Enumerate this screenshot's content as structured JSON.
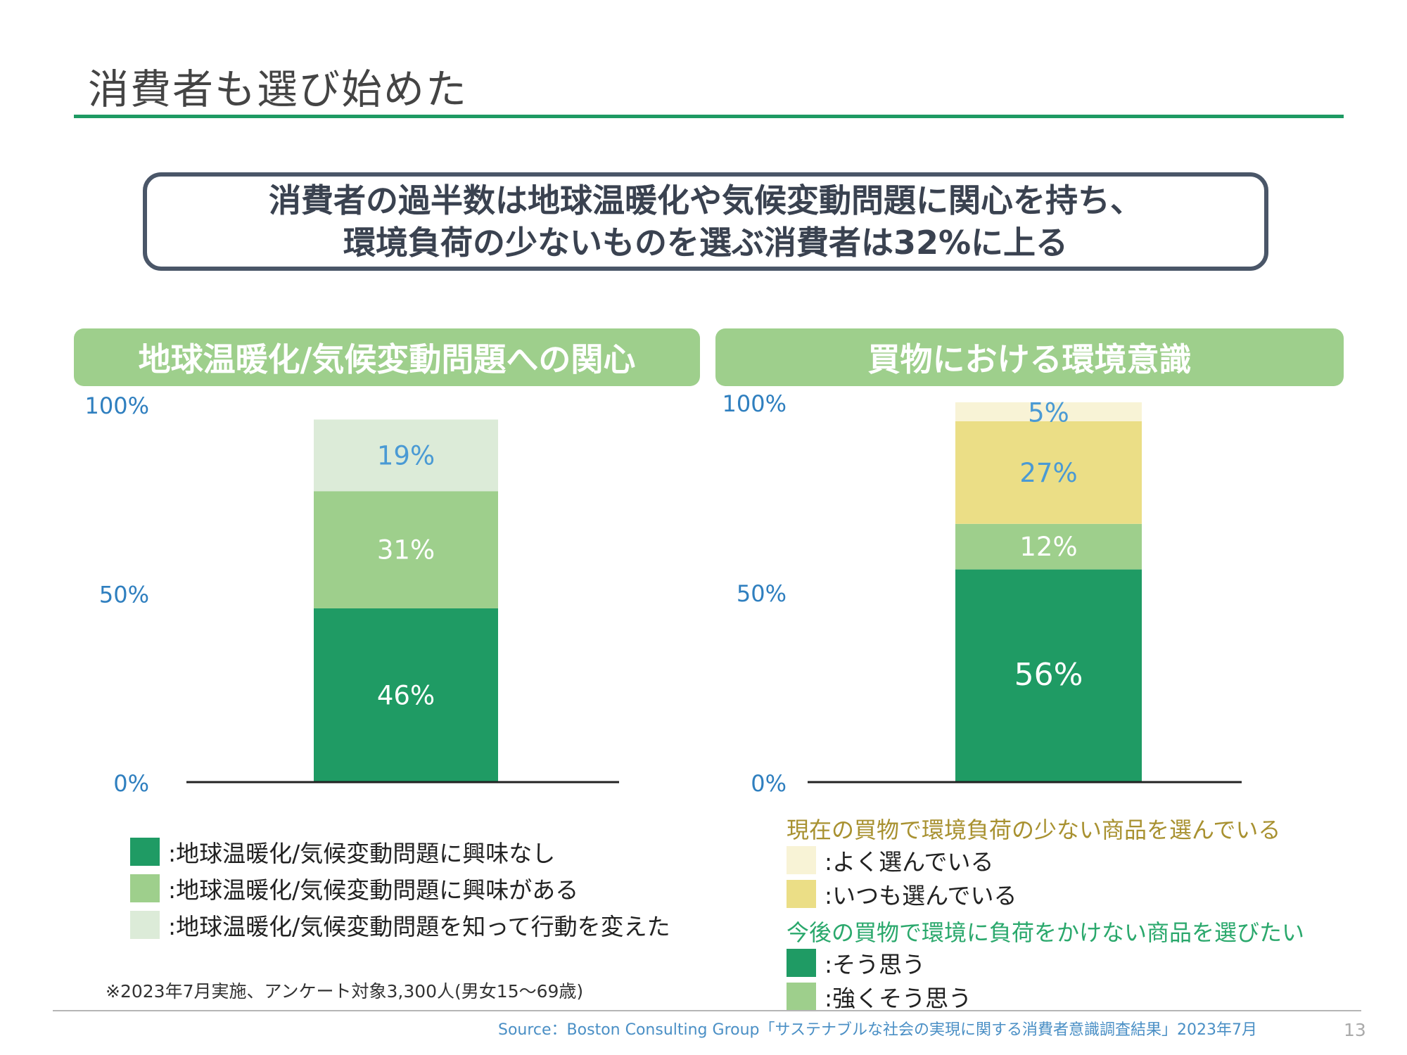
{
  "page": {
    "title": "消費者も選び始めた",
    "callout_line1": "消費者の過半数は地球温暖化や気候変動問題に関心を持ち、",
    "callout_line2": "環境負荷の少ないものを選ぶ消費者は32%に上る",
    "footnote": "※2023年7月実施、アンケート対象3,300人(男女15〜69歳)",
    "source": "Source：Boston Consulting Group「サステナブルな社会の実現に関する消費者意識調査結果」2023年7月",
    "page_number": "13"
  },
  "colors": {
    "accent_green": "#1e9a63",
    "dark_green": "#1f9b64",
    "light_green": "#9ecf8c",
    "pale_green": "#dcebd8",
    "yellow": "#ebde86",
    "pale_yellow": "#f8f3d6",
    "axis_blue": "#2f7fbf",
    "label_blue": "#4a9ad4",
    "legend_heading_gold": "#a89130",
    "legend_heading_green": "#2aa86c"
  },
  "chart_data": [
    {
      "type": "bar",
      "stacked": true,
      "title": "地球温暖化/気候変動問題への関心",
      "y_ticks": [
        "0%",
        "50%",
        "100%"
      ],
      "ylim": [
        0,
        100
      ],
      "series": [
        {
          "name": ":地球温暖化/気候変動問題に興味なし",
          "value": 46,
          "label": "46%",
          "color": "#1f9b64",
          "label_color": "#ffffff"
        },
        {
          "name": ":地球温暖化/気候変動問題に興味がある",
          "value": 31,
          "label": "31%",
          "color": "#9ecf8c",
          "label_color": "#ffffff"
        },
        {
          "name": ":地球温暖化/気候変動問題を知って行動を変えた",
          "value": 19,
          "label": "19%",
          "color": "#dcebd8",
          "label_color": "#4a9ad4"
        }
      ]
    },
    {
      "type": "bar",
      "stacked": true,
      "title": "買物における環境意識",
      "y_ticks": [
        "0%",
        "50%",
        "100%"
      ],
      "ylim": [
        0,
        100
      ],
      "legend_groups": [
        {
          "heading": "現在の買物で環境負荷の少ない商品を選んでいる",
          "items": [
            ":よく選んでいる",
            ":いつも選んでいる"
          ]
        },
        {
          "heading": "今後の買物で環境に負荷をかけない商品を選びたい",
          "items": [
            ":そう思う",
            ":強くそう思う"
          ]
        }
      ],
      "series": [
        {
          "name": ":そう思う",
          "value": 56,
          "label": "56%",
          "color": "#1f9b64",
          "label_color": "#ffffff"
        },
        {
          "name": ":強くそう思う",
          "value": 12,
          "label": "12%",
          "color": "#9ecf8c",
          "label_color": "#ffffff"
        },
        {
          "name": ":いつも選んでいる",
          "value": 27,
          "label": "27%",
          "color": "#ebde86",
          "label_color": "#4a9ad4"
        },
        {
          "name": ":よく選んでいる",
          "value": 5,
          "label": "5%",
          "color": "#f8f3d6",
          "label_color": "#4a9ad4"
        }
      ]
    }
  ]
}
